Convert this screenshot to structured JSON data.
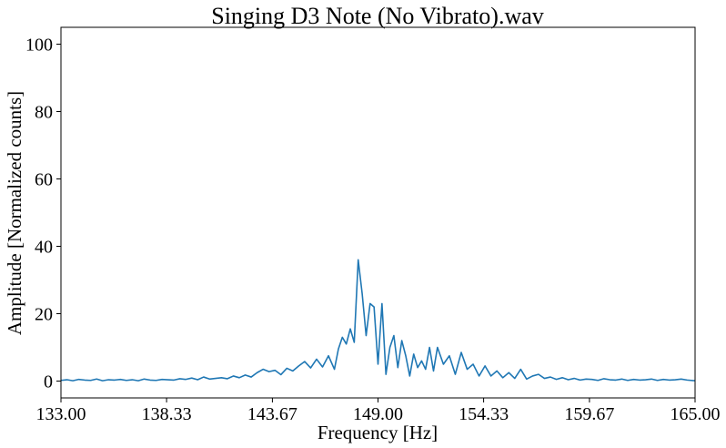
{
  "chart_data": {
    "type": "line",
    "title": "Singing D3 Note (No Vibrato).wav",
    "xlabel": "Frequency [Hz]",
    "ylabel": "Amplitude [Normalized counts]",
    "xlim": [
      133.0,
      165.0
    ],
    "ylim": [
      -5,
      105
    ],
    "xticks": [
      133.0,
      138.33,
      143.67,
      149.0,
      154.33,
      159.67,
      165.0
    ],
    "xtick_labels": [
      "133.00",
      "138.33",
      "143.67",
      "149.00",
      "154.33",
      "159.67",
      "165.00"
    ],
    "yticks": [
      0,
      20,
      40,
      60,
      80,
      100
    ],
    "ytick_labels": [
      "0",
      "20",
      "40",
      "60",
      "80",
      "100"
    ],
    "grid": false,
    "line_color": "#1f77b4",
    "series": [
      {
        "x": [
          133.0,
          133.3,
          133.6,
          133.9,
          134.2,
          134.5,
          134.8,
          135.1,
          135.4,
          135.7,
          136.0,
          136.3,
          136.6,
          136.9,
          137.2,
          137.5,
          137.8,
          138.1,
          138.4,
          138.7,
          139.0,
          139.3,
          139.6,
          139.9,
          140.2,
          140.5,
          140.8,
          141.1,
          141.4,
          141.7,
          142.0,
          142.3,
          142.6,
          142.9,
          143.2,
          143.5,
          143.8,
          144.1,
          144.4,
          144.7,
          145.0,
          145.3,
          145.6,
          145.9,
          146.2,
          146.5,
          146.8,
          147.0,
          147.2,
          147.4,
          147.6,
          147.8,
          148.0,
          148.2,
          148.4,
          148.6,
          148.8,
          149.0,
          149.2,
          149.4,
          149.6,
          149.8,
          150.0,
          150.2,
          150.4,
          150.6,
          150.8,
          151.0,
          151.2,
          151.4,
          151.6,
          151.8,
          152.0,
          152.3,
          152.6,
          152.9,
          153.2,
          153.5,
          153.8,
          154.1,
          154.4,
          154.7,
          155.0,
          155.3,
          155.6,
          155.9,
          156.2,
          156.5,
          156.8,
          157.1,
          157.4,
          157.7,
          158.0,
          158.3,
          158.6,
          158.9,
          159.2,
          159.5,
          159.8,
          160.1,
          160.4,
          160.7,
          161.0,
          161.3,
          161.6,
          161.9,
          162.2,
          162.5,
          162.8,
          163.1,
          163.4,
          163.7,
          164.0,
          164.3,
          164.6,
          165.0
        ],
        "y": [
          0.2,
          0.4,
          0.1,
          0.5,
          0.3,
          0.2,
          0.6,
          0.1,
          0.4,
          0.3,
          0.5,
          0.2,
          0.4,
          0.1,
          0.6,
          0.3,
          0.2,
          0.5,
          0.4,
          0.3,
          0.7,
          0.5,
          0.9,
          0.4,
          1.2,
          0.6,
          0.8,
          1.0,
          0.7,
          1.5,
          1.0,
          1.8,
          1.2,
          2.5,
          3.5,
          2.8,
          3.2,
          1.9,
          3.8,
          3.0,
          4.5,
          5.8,
          3.9,
          6.5,
          4.2,
          7.5,
          3.5,
          9.5,
          13.0,
          11.0,
          15.5,
          11.5,
          36.0,
          26.0,
          13.5,
          23.0,
          22.0,
          5.0,
          23.0,
          2.0,
          10.0,
          13.5,
          4.0,
          12.0,
          7.5,
          1.5,
          8.0,
          4.0,
          6.0,
          3.5,
          10.0,
          3.0,
          10.0,
          5.0,
          7.5,
          2.0,
          8.5,
          3.5,
          5.0,
          1.5,
          4.5,
          1.5,
          3.0,
          1.0,
          2.5,
          0.8,
          3.5,
          0.6,
          1.5,
          2.0,
          0.8,
          1.2,
          0.5,
          1.0,
          0.4,
          0.8,
          0.3,
          0.6,
          0.5,
          0.2,
          0.7,
          0.4,
          0.3,
          0.6,
          0.2,
          0.5,
          0.3,
          0.4,
          0.6,
          0.2,
          0.5,
          0.3,
          0.4,
          0.6,
          0.3,
          0.1
        ]
      }
    ]
  }
}
